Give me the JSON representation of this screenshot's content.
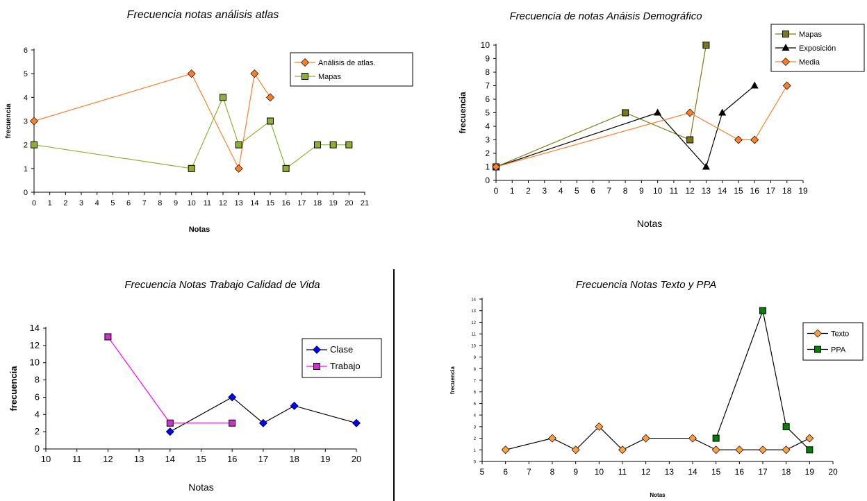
{
  "chart_data": [
    {
      "type": "line",
      "title": "Frecuencia notas análisis atlas",
      "xlabel": "Notas",
      "ylabel": "frecuencia",
      "xlim": [
        0,
        21
      ],
      "ylim": [
        0,
        6
      ],
      "xticks": [
        0,
        1,
        2,
        3,
        4,
        5,
        6,
        7,
        8,
        9,
        10,
        11,
        12,
        13,
        14,
        15,
        16,
        17,
        18,
        19,
        20,
        21
      ],
      "yticks": [
        0,
        1,
        2,
        3,
        4,
        5,
        6
      ],
      "grid": false,
      "legend_position": "right",
      "series": [
        {
          "name": "Análisis de atlas.",
          "color": "#ff7f27",
          "marker": "diamond",
          "x": [
            0,
            10,
            13,
            14,
            15
          ],
          "y": [
            3,
            5,
            1,
            5,
            4
          ]
        },
        {
          "name": "Mapas",
          "color": "#8db030",
          "marker": "square",
          "x": [
            0,
            10,
            12,
            13,
            15,
            16,
            18,
            19,
            20
          ],
          "y": [
            2,
            1,
            4,
            2,
            3,
            1,
            2,
            2,
            2
          ]
        }
      ]
    },
    {
      "type": "line",
      "title": "Frecuencia de notas Anáisis Demográfico",
      "xlabel": "Notas",
      "ylabel": "frecuencia",
      "xlim": [
        0,
        19
      ],
      "ylim": [
        0,
        10
      ],
      "xticks": [
        0,
        1,
        2,
        3,
        4,
        5,
        6,
        7,
        8,
        9,
        10,
        11,
        12,
        13,
        14,
        15,
        16,
        17,
        18,
        19
      ],
      "yticks": [
        0,
        1,
        2,
        3,
        4,
        5,
        6,
        7,
        8,
        9,
        10
      ],
      "grid": false,
      "legend_position": "top-right",
      "series": [
        {
          "name": "Mapas",
          "color": "#7a7a10",
          "marker": "square",
          "x": [
            0,
            8,
            12,
            13
          ],
          "y": [
            1,
            5,
            3,
            10
          ]
        },
        {
          "name": "Exposición",
          "color": "#000000",
          "marker": "triangle",
          "x": [
            0,
            10,
            13,
            14,
            16
          ],
          "y": [
            1,
            5,
            1,
            5,
            7
          ]
        },
        {
          "name": "Media",
          "color": "#ff7f27",
          "marker": "diamond",
          "x": [
            0,
            12,
            15,
            16,
            18
          ],
          "y": [
            1,
            5,
            3,
            3,
            7
          ]
        }
      ]
    },
    {
      "type": "line",
      "title": "Frecuencia Notas Trabajo Calidad de Vida",
      "xlabel": "Notas",
      "ylabel": "frecuencia",
      "xlim": [
        10,
        20
      ],
      "ylim": [
        0,
        14
      ],
      "xticks": [
        10,
        11,
        12,
        13,
        14,
        15,
        16,
        17,
        18,
        19,
        20
      ],
      "yticks": [
        0,
        2,
        4,
        6,
        8,
        10,
        12,
        14
      ],
      "grid": false,
      "legend_position": "right",
      "series": [
        {
          "name": "Clase",
          "color": "#0000ff",
          "line_color": "#000000",
          "marker": "diamond",
          "x": [
            14,
            16,
            17,
            18,
            20
          ],
          "y": [
            2,
            6,
            3,
            5,
            3
          ]
        },
        {
          "name": "Trabajo",
          "color": "#cc33cc",
          "line_color": "#ff00ff",
          "marker": "square",
          "x": [
            12,
            14,
            16
          ],
          "y": [
            13,
            3,
            3
          ]
        }
      ]
    },
    {
      "type": "line",
      "title": "Frecuencia Notas Texto y PPA",
      "xlabel": "Notas",
      "ylabel": "frecuencia",
      "xlim": [
        5,
        20
      ],
      "ylim": [
        0,
        14
      ],
      "xticks": [
        5,
        6,
        7,
        8,
        9,
        10,
        11,
        12,
        13,
        14,
        15,
        16,
        17,
        18,
        19,
        20
      ],
      "yticks": [
        0,
        1,
        2,
        3,
        4,
        5,
        6,
        7,
        8,
        9,
        10,
        11,
        12,
        13,
        14
      ],
      "grid": false,
      "legend_position": "right",
      "series": [
        {
          "name": "Texto",
          "color": "#ffa040",
          "line_color": "#000000",
          "marker": "diamond",
          "x": [
            6,
            8,
            9,
            10,
            11,
            12,
            14,
            15,
            16,
            17,
            18,
            19
          ],
          "y": [
            1,
            2,
            1,
            3,
            1,
            2,
            2,
            1,
            1,
            1,
            1,
            2
          ]
        },
        {
          "name": "PPA",
          "color": "#008000",
          "line_color": "#000000",
          "marker": "square",
          "x": [
            15,
            17,
            18,
            19
          ],
          "y": [
            2,
            13,
            3,
            1
          ]
        }
      ]
    }
  ]
}
